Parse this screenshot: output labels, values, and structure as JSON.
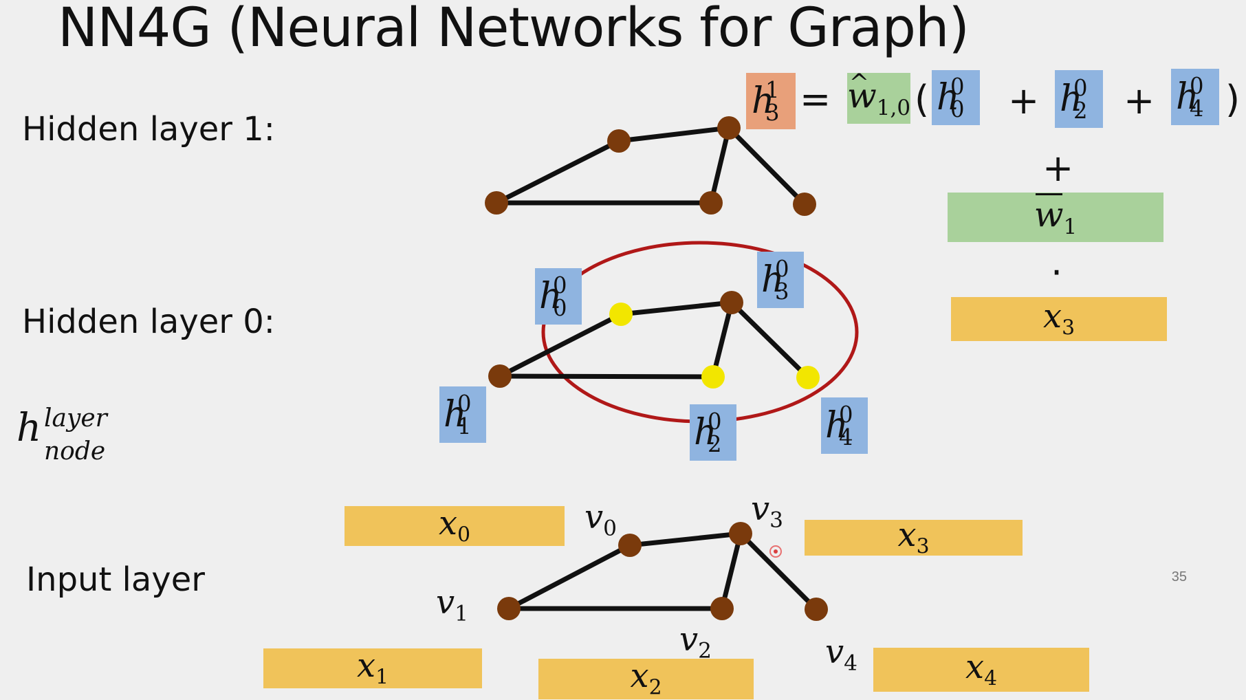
{
  "title": "NN4G (Neural Networks for Graph)",
  "labels": {
    "hidden1": "Hidden layer 1:",
    "hidden0": "Hidden layer 0:",
    "input": "Input layer"
  },
  "notation": {
    "base": "h",
    "sup": "layer",
    "sub": "node"
  },
  "equation": {
    "lhs": {
      "base": "h",
      "sup": "1",
      "sub": "3"
    },
    "equals": "=",
    "weight_hat": {
      "base": "w",
      "sub": "1,0"
    },
    "open_paren": "(",
    "terms": [
      {
        "base": "h",
        "sup": "0",
        "sub": "0"
      },
      {
        "base": "h",
        "sup": "0",
        "sub": "2"
      },
      {
        "base": "h",
        "sup": "0",
        "sub": "4"
      }
    ],
    "plus": "+",
    "close_paren": ")",
    "weight_bar": {
      "base": "w",
      "sub": "1"
    },
    "dot": "·",
    "x3": {
      "base": "x",
      "sub": "3"
    }
  },
  "hidden0_labels": [
    {
      "base": "h",
      "sup": "0",
      "sub": "0"
    },
    {
      "base": "h",
      "sup": "0",
      "sub": "1"
    },
    {
      "base": "h",
      "sup": "0",
      "sub": "2"
    },
    {
      "base": "h",
      "sup": "0",
      "sub": "3"
    },
    {
      "base": "h",
      "sup": "0",
      "sub": "4"
    }
  ],
  "node_labels": [
    {
      "base": "v",
      "sub": "0"
    },
    {
      "base": "v",
      "sub": "1"
    },
    {
      "base": "v",
      "sub": "2"
    },
    {
      "base": "v",
      "sub": "3"
    },
    {
      "base": "v",
      "sub": "4"
    }
  ],
  "feature_labels": [
    {
      "base": "x",
      "sub": "0"
    },
    {
      "base": "x",
      "sub": "1"
    },
    {
      "base": "x",
      "sub": "2"
    },
    {
      "base": "x",
      "sub": "3"
    },
    {
      "base": "x",
      "sub": "4"
    }
  ],
  "page_number": "35",
  "colors": {
    "node": "#7a3a0c",
    "highlight": "#f2e600",
    "ellipse": "#b01818",
    "blue_box": "#8fb4e0",
    "green_box": "#a9d19b",
    "orange_box": "#e8a07a",
    "yellow_box": "#f0c35a"
  }
}
